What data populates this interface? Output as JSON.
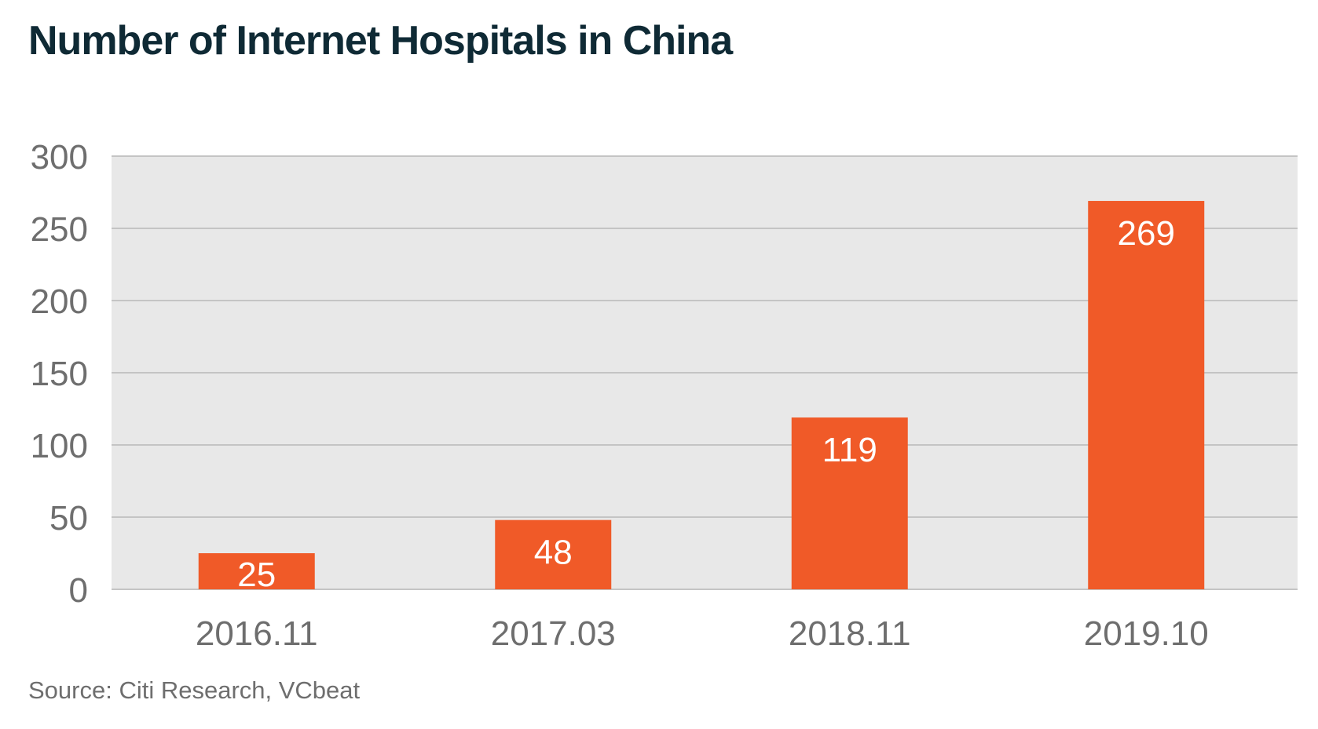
{
  "chart_data": {
    "type": "bar",
    "title": "Number of Internet Hospitals in China",
    "source": "Source: Citi Research, VCbeat",
    "categories": [
      "2016.11",
      "2017.03",
      "2018.11",
      "2019.10"
    ],
    "values": [
      25,
      48,
      119,
      269
    ],
    "value_labels": [
      "25",
      "48",
      "119",
      "269"
    ],
    "y_ticks": [
      "0",
      "50",
      "100",
      "150",
      "200",
      "250",
      "300"
    ],
    "ylim": [
      0,
      300
    ],
    "grid": true,
    "legend": "none",
    "colors": {
      "bar": "#f05a28",
      "plot_background": "#e8e8e8",
      "gridline": "#c4c4c4",
      "title": "#0f2a35",
      "axis_text": "#6e6e6e"
    }
  }
}
